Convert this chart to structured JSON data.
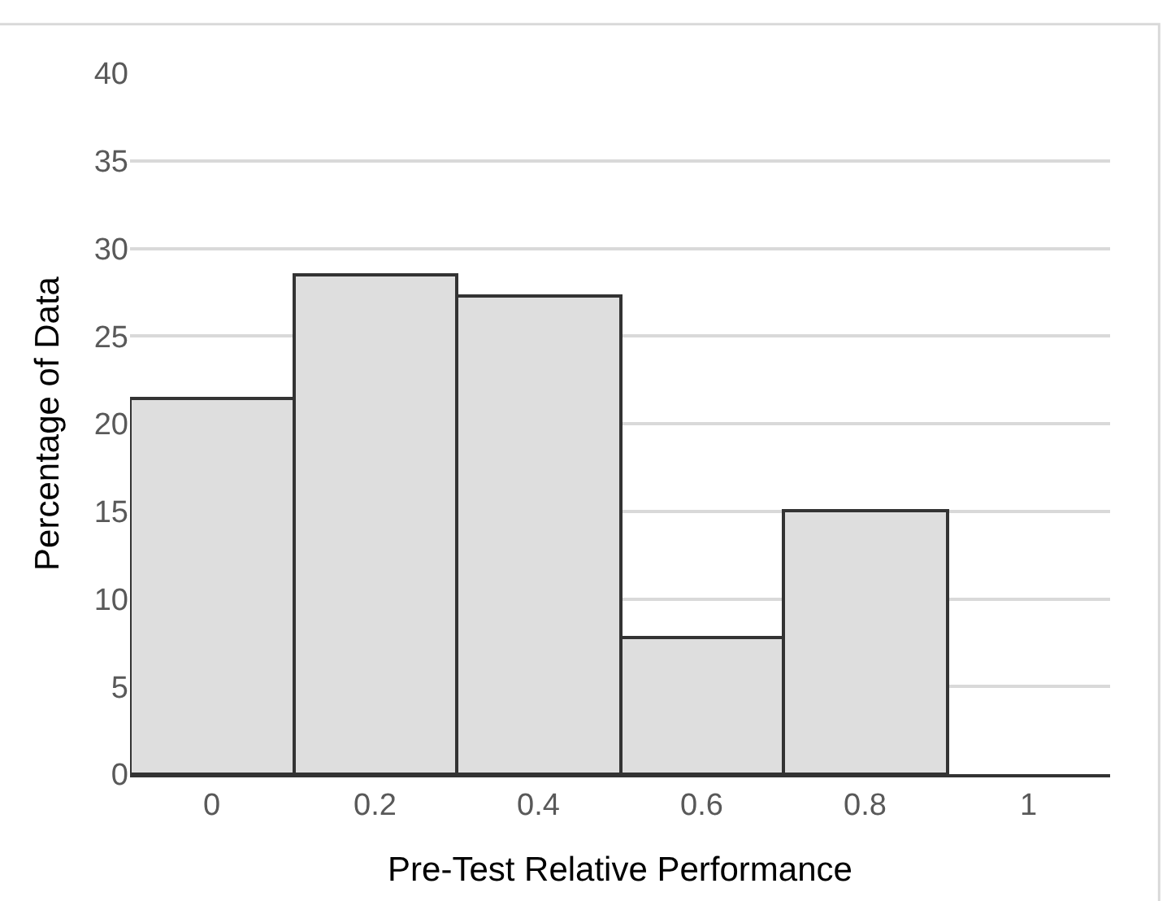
{
  "chart_data": {
    "type": "bar",
    "xlabel": "Pre-Test Relative Performance",
    "ylabel": "Percentage of Data",
    "categories": [
      "0",
      "0.2",
      "0.4",
      "0.6",
      "0.8",
      "1"
    ],
    "values": [
      21.4,
      28.5,
      27.3,
      7.8,
      15.0,
      null
    ],
    "color": "#dedede",
    "ylim": [
      0,
      40
    ],
    "yticks": [
      0,
      5,
      10,
      15,
      20,
      25,
      30,
      35,
      40
    ],
    "grid": "y"
  }
}
